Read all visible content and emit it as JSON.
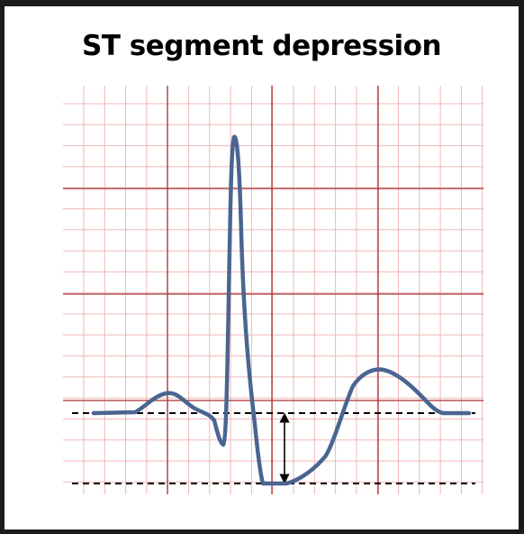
{
  "title": "ST segment depression",
  "colors": {
    "grid_minor": "#efb7b7",
    "grid_major": "#a93232",
    "trace": "#4a6590",
    "baseline": "#000000",
    "background": "#ffffff"
  }
}
